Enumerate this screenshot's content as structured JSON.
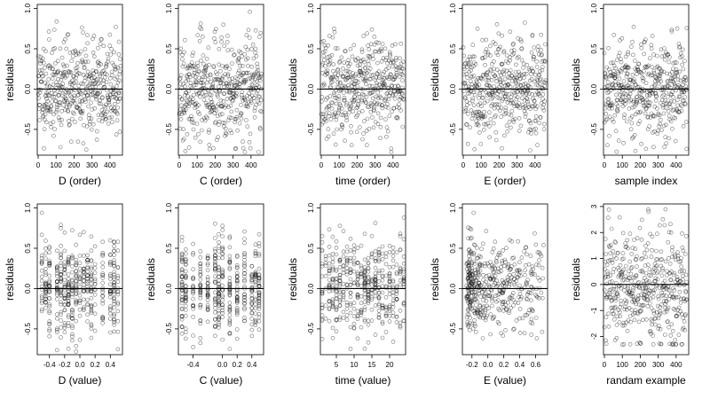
{
  "chart_data": [
    {
      "type": "scatter",
      "xlabel": "D (order)",
      "ylabel": "residuals",
      "mode": "order",
      "seed": 11,
      "xlim": [
        -5,
        470
      ],
      "ylim": [
        -0.82,
        1.05
      ],
      "xticks": [
        "0",
        "100",
        "200",
        "300",
        "400"
      ],
      "xtick_values": [
        0,
        100,
        200,
        300,
        400
      ],
      "yticks": [
        "-0.5",
        "0.0",
        "0.5",
        "1.0"
      ],
      "ytick_values": [
        -0.5,
        0,
        0.5,
        1.0
      ],
      "reference_line": 0
    },
    {
      "type": "scatter",
      "xlabel": "C (order)",
      "ylabel": "residuals",
      "mode": "order",
      "seed": 23,
      "xlim": [
        -5,
        470
      ],
      "ylim": [
        -0.82,
        1.05
      ],
      "xticks": [
        "0",
        "100",
        "200",
        "300",
        "400"
      ],
      "xtick_values": [
        0,
        100,
        200,
        300,
        400
      ],
      "yticks": [
        "-0.5",
        "0.0",
        "0.5",
        "1.0"
      ],
      "ytick_values": [
        -0.5,
        0,
        0.5,
        1.0
      ],
      "reference_line": 0
    },
    {
      "type": "scatter",
      "xlabel": "time (order)",
      "ylabel": "residuals",
      "mode": "order",
      "seed": 37,
      "xlim": [
        -5,
        470
      ],
      "ylim": [
        -0.82,
        1.05
      ],
      "xticks": [
        "0",
        "100",
        "200",
        "300",
        "400"
      ],
      "xtick_values": [
        0,
        100,
        200,
        300,
        400
      ],
      "yticks": [
        "-0.5",
        "0.0",
        "0.5",
        "1.0"
      ],
      "ytick_values": [
        -0.5,
        0,
        0.5,
        1.0
      ],
      "reference_line": 0
    },
    {
      "type": "scatter",
      "xlabel": "E (order)",
      "ylabel": "residuals",
      "mode": "order",
      "seed": 41,
      "xlim": [
        -5,
        470
      ],
      "ylim": [
        -0.82,
        1.05
      ],
      "xticks": [
        "0",
        "100",
        "200",
        "300",
        "400"
      ],
      "xtick_values": [
        0,
        100,
        200,
        300,
        400
      ],
      "yticks": [
        "-0.5",
        "0.0",
        "0.5",
        "1.0"
      ],
      "ytick_values": [
        -0.5,
        0,
        0.5,
        1.0
      ],
      "reference_line": 0
    },
    {
      "type": "scatter",
      "xlabel": "sample index",
      "ylabel": "residuals",
      "mode": "order",
      "seed": 53,
      "xlim": [
        -5,
        470
      ],
      "ylim": [
        -0.82,
        1.05
      ],
      "xticks": [
        "0",
        "100",
        "200",
        "300",
        "400"
      ],
      "xtick_values": [
        0,
        100,
        200,
        300,
        400
      ],
      "yticks": [
        "-0.5",
        "0.0",
        "0.5",
        "1.0"
      ],
      "ytick_values": [
        -0.5,
        0,
        0.5,
        1.0
      ],
      "reference_line": 0
    },
    {
      "type": "scatter",
      "xlabel": "D (value)",
      "ylabel": "residuals",
      "mode": "discrete",
      "seed": 61,
      "x_levels": [
        -0.5,
        -0.45,
        -0.4,
        -0.3,
        -0.25,
        -0.2,
        -0.15,
        -0.1,
        -0.05,
        0,
        0.05,
        0.1,
        0.15,
        0.2,
        0.3,
        0.4,
        0.45,
        0.5
      ],
      "xlim": [
        -0.56,
        0.56
      ],
      "ylim": [
        -0.82,
        1.05
      ],
      "xticks": [
        "-0.4",
        "-0.2",
        "0.0",
        "0.2",
        "0.4"
      ],
      "xtick_values": [
        -0.4,
        -0.2,
        0,
        0.2,
        0.4
      ],
      "yticks": [
        "-0.5",
        "0.0",
        "0.5",
        "1.0"
      ],
      "ytick_values": [
        -0.5,
        0,
        0.5,
        1.0
      ],
      "reference_line": 0
    },
    {
      "type": "scatter",
      "xlabel": "C (value)",
      "ylabel": "residuals",
      "mode": "discrete",
      "seed": 71,
      "x_levels": [
        -0.55,
        -0.5,
        -0.4,
        -0.3,
        -0.2,
        -0.1,
        -0.05,
        0,
        0.1,
        0.2,
        0.3,
        0.4,
        0.45,
        0.5
      ],
      "xlim": [
        -0.6,
        0.56
      ],
      "ylim": [
        -0.82,
        1.05
      ],
      "xticks": [
        "-0.4",
        "0.0",
        "0.2",
        "0.4"
      ],
      "xtick_values": [
        -0.4,
        0,
        0.2,
        0.4
      ],
      "yticks": [
        "-0.5",
        "0.0",
        "0.5",
        "1.0"
      ],
      "ytick_values": [
        -0.5,
        0,
        0.5,
        1.0
      ],
      "reference_line": 0
    },
    {
      "type": "scatter",
      "xlabel": "time (value)",
      "ylabel": "residuals",
      "mode": "discrete",
      "seed": 83,
      "x_levels": [
        1,
        2,
        3,
        4,
        5,
        6,
        7,
        8,
        9,
        10,
        11,
        12,
        13,
        14,
        15,
        16,
        17,
        18,
        19,
        20,
        21,
        22,
        23,
        24
      ],
      "xlim": [
        0.5,
        24.5
      ],
      "ylim": [
        -0.82,
        1.05
      ],
      "xticks": [
        "5",
        "10",
        "15",
        "20"
      ],
      "xtick_values": [
        5,
        10,
        15,
        20
      ],
      "yticks": [
        "-0.5",
        "0.0",
        "0.5",
        "1.0"
      ],
      "ytick_values": [
        -0.5,
        0,
        0.5,
        1.0
      ],
      "reference_line": 0
    },
    {
      "type": "scatter",
      "xlabel": "E (value)",
      "ylabel": "residuals",
      "mode": "skewed",
      "seed": 97,
      "xlim": [
        -0.32,
        0.75
      ],
      "ylim": [
        -0.82,
        1.05
      ],
      "xticks": [
        "-0.2",
        "0.0",
        "0.2",
        "0.4",
        "0.6"
      ],
      "xtick_values": [
        -0.2,
        0,
        0.2,
        0.4,
        0.6
      ],
      "yticks": [
        "-0.5",
        "0.0",
        "0.5",
        "1.0"
      ],
      "ytick_values": [
        -0.5,
        0,
        0.5,
        1.0
      ],
      "reference_line": 0
    },
    {
      "type": "scatter",
      "xlabel": "randam example",
      "ylabel": "residuals",
      "mode": "order",
      "seed": 101,
      "scale": 1.1,
      "clip": 2.9,
      "xlim": [
        -5,
        470
      ],
      "ylim": [
        -2.7,
        3.1
      ],
      "xticks": [
        "0",
        "100",
        "200",
        "300",
        "400"
      ],
      "xtick_values": [
        0,
        100,
        200,
        300,
        400
      ],
      "yticks": [
        "-2",
        "-1",
        "0",
        "1",
        "2",
        "3"
      ],
      "ytick_values": [
        -2,
        -1,
        0,
        1,
        2,
        3
      ],
      "reference_line": 0
    }
  ]
}
